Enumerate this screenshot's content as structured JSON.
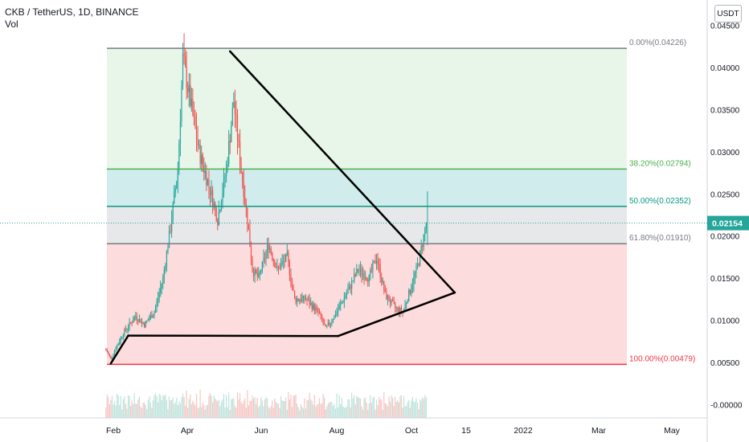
{
  "header": {
    "symbol_line": "CKB / TetherUS, 1D, BINANCE",
    "volume_label": "Vol"
  },
  "currency_button": "USDT",
  "colors": {
    "up": "#26a69a",
    "down": "#ef5350",
    "fib_0": "#787b86",
    "fib_382": "#4caf50",
    "fib_50": "#089981",
    "fib_618": "#787b86",
    "fib_100": "#f23645",
    "zone_green": "#e8f5e9",
    "zone_teal": "#d1ecec",
    "zone_gray": "#e7e8ea",
    "zone_red": "#fcdcdc",
    "price_tag": "#26a69a"
  },
  "chart_data": {
    "type": "candlestick",
    "pair": "CKB / TetherUS",
    "interval": "1D",
    "exchange": "BINANCE",
    "x_axis_ticks": [
      "Feb",
      "Apr",
      "Jun",
      "Aug",
      "Oct",
      "15",
      "2022",
      "Mar",
      "May"
    ],
    "y_axis_ticks": [
      "0.04500",
      "0.04000",
      "0.03500",
      "0.03000",
      "0.02500",
      "0.02000",
      "0.01500",
      "0.01000",
      "0.00500",
      "-0.00000"
    ],
    "ylim": [
      -0.0006,
      0.04541
    ],
    "last_price": "0.02154",
    "last_price_value": 0.02154,
    "fib_levels": [
      {
        "label": "0.00%(0.04226)",
        "value": 0.04226
      },
      {
        "label": "38.20%(0.02794)",
        "value": 0.02794
      },
      {
        "label": "50.00%(0.02352)",
        "value": 0.02352
      },
      {
        "label": "61.80%(0.01910)",
        "value": 0.0191
      },
      {
        "label": "100.00%(0.00479)",
        "value": 0.00479
      }
    ],
    "price_path": [
      {
        "date": "2021-01-25",
        "close": 0.0065
      },
      {
        "date": "2021-01-29",
        "close": 0.0055
      },
      {
        "date": "2021-02-08",
        "close": 0.0085
      },
      {
        "date": "2021-02-18",
        "close": 0.0105
      },
      {
        "date": "2021-02-25",
        "close": 0.0095
      },
      {
        "date": "2021-03-05",
        "close": 0.011
      },
      {
        "date": "2021-03-12",
        "close": 0.015
      },
      {
        "date": "2021-03-18",
        "close": 0.021
      },
      {
        "date": "2021-03-24",
        "close": 0.028
      },
      {
        "date": "2021-03-28",
        "close": 0.041
      },
      {
        "date": "2021-04-03",
        "close": 0.036
      },
      {
        "date": "2021-04-10",
        "close": 0.03
      },
      {
        "date": "2021-04-18",
        "close": 0.026
      },
      {
        "date": "2021-04-25",
        "close": 0.022
      },
      {
        "date": "2021-05-02",
        "close": 0.028
      },
      {
        "date": "2021-05-08",
        "close": 0.036
      },
      {
        "date": "2021-05-13",
        "close": 0.029
      },
      {
        "date": "2021-05-19",
        "close": 0.022
      },
      {
        "date": "2021-05-23",
        "close": 0.016
      },
      {
        "date": "2021-05-28",
        "close": 0.015
      },
      {
        "date": "2021-06-05",
        "close": 0.019
      },
      {
        "date": "2021-06-12",
        "close": 0.016
      },
      {
        "date": "2021-06-20",
        "close": 0.0175
      },
      {
        "date": "2021-06-26",
        "close": 0.0125
      },
      {
        "date": "2021-07-05",
        "close": 0.0125
      },
      {
        "date": "2021-07-15",
        "close": 0.011
      },
      {
        "date": "2021-07-21",
        "close": 0.009
      },
      {
        "date": "2021-07-28",
        "close": 0.0105
      },
      {
        "date": "2021-08-08",
        "close": 0.0135
      },
      {
        "date": "2021-08-16",
        "close": 0.016
      },
      {
        "date": "2021-08-25",
        "close": 0.015
      },
      {
        "date": "2021-08-31",
        "close": 0.0175
      },
      {
        "date": "2021-09-07",
        "close": 0.013
      },
      {
        "date": "2021-09-15",
        "close": 0.0115
      },
      {
        "date": "2021-09-21",
        "close": 0.011
      },
      {
        "date": "2021-09-28",
        "close": 0.014
      },
      {
        "date": "2021-10-04",
        "close": 0.017
      },
      {
        "date": "2021-10-08",
        "close": 0.02
      },
      {
        "date": "2021-10-10",
        "close": 0.02154
      }
    ],
    "drawn_lines": [
      {
        "name": "descending-trendline",
        "from": [
          "2021-05-05",
          0.0419
        ],
        "to": [
          "2021-11-02",
          0.0133
        ]
      },
      {
        "name": "ascending-trendline",
        "from": [
          "2021-07-31",
          0.00815
        ],
        "to": [
          "2021-11-02",
          0.0133
        ]
      },
      {
        "name": "base-support-line",
        "from": [
          "2021-02-12",
          0.0082
        ],
        "to": [
          "2021-07-31",
          0.00815
        ]
      },
      {
        "name": "early-rise-line",
        "from": [
          "2021-01-29",
          0.0049
        ],
        "to": [
          "2021-02-12",
          0.0082
        ]
      }
    ]
  }
}
